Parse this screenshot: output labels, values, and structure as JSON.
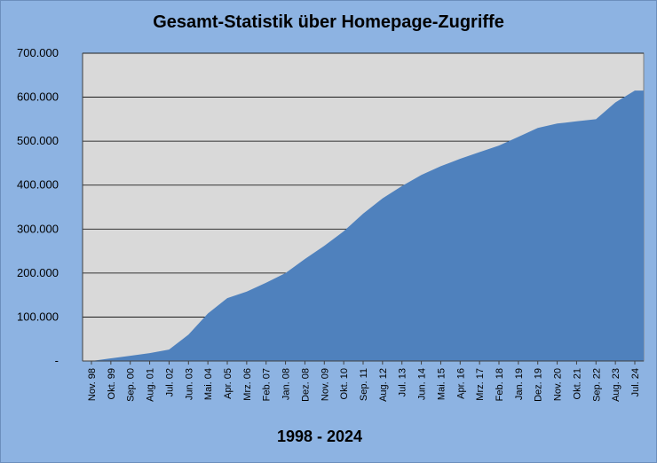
{
  "chart_data": {
    "type": "area",
    "title": "Gesamt-Statistik über Homepage-Zugriffe",
    "subtitle": "1998 - 2024",
    "xlabel": "",
    "ylabel": "",
    "ylim": [
      0,
      700000
    ],
    "grid": true,
    "y_ticks": [
      {
        "value": 0,
        "label": "-"
      },
      {
        "value": 100000,
        "label": "100.000"
      },
      {
        "value": 200000,
        "label": "200.000"
      },
      {
        "value": 300000,
        "label": "300.000"
      },
      {
        "value": 400000,
        "label": "400.000"
      },
      {
        "value": 500000,
        "label": "500.000"
      },
      {
        "value": 600000,
        "label": "600.000"
      },
      {
        "value": 700000,
        "label": "700.000"
      }
    ],
    "x_ticks": [
      "Nov. 98",
      "Okt. 99",
      "Sep. 00",
      "Aug. 01",
      "Jul. 02",
      "Jun. 03",
      "Mai. 04",
      "Apr. 05",
      "Mrz. 06",
      "Feb. 07",
      "Jan. 08",
      "Dez. 08",
      "Nov. 09",
      "Okt. 10",
      "Sep. 11",
      "Aug. 12",
      "Jul. 13",
      "Jun. 14",
      "Mai. 15",
      "Apr. 16",
      "Mrz. 17",
      "Feb. 18",
      "Jan. 19",
      "Dez. 19",
      "Nov. 20",
      "Okt. 21",
      "Sep. 22",
      "Aug. 23",
      "Jul. 24"
    ],
    "series": [
      {
        "color": "#4f81bd",
        "x": [
          "Nov. 98",
          "Okt. 99",
          "Sep. 00",
          "Aug. 01",
          "Jul. 02",
          "Jun. 03",
          "Mai. 04",
          "Apr. 05",
          "Mrz. 06",
          "Feb. 07",
          "Jan. 08",
          "Dez. 08",
          "Nov. 09",
          "Okt. 10",
          "Sep. 11",
          "Aug. 12",
          "Jul. 13",
          "Jun. 14",
          "Mai. 15",
          "Apr. 16",
          "Mrz. 17",
          "Feb. 18",
          "Jan. 19",
          "Dez. 19",
          "Nov. 20",
          "Okt. 21",
          "Sep. 22",
          "Aug. 23",
          "Jul. 24"
        ],
        "values": [
          0,
          6000,
          12000,
          18000,
          26000,
          60000,
          108000,
          143000,
          158000,
          178000,
          200000,
          232000,
          262000,
          295000,
          335000,
          370000,
          398000,
          423000,
          443000,
          460000,
          475000,
          490000,
          510000,
          530000,
          540000,
          545000,
          550000,
          588000,
          615000
        ]
      }
    ]
  },
  "colors": {
    "background": "#8db3e2",
    "plot_area": "#d9d9d9",
    "series_fill": "#4f81bd",
    "gridline": "#000000"
  }
}
